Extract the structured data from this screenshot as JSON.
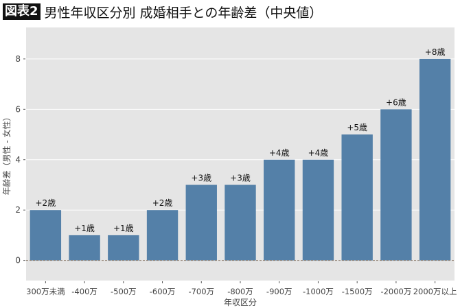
{
  "title": {
    "badge": "図表2",
    "text": "男性年収区分別 成婚相手との年齢差（中央値）"
  },
  "chart_data": {
    "type": "bar",
    "title": "男性年収区分別 成婚相手との年齢差（中央値）",
    "xlabel": "年収区分",
    "ylabel": "年齢差（男性 - 女性）",
    "categories": [
      "300万未満",
      "-400万",
      "-500万",
      "-600万",
      "-700万",
      "-800万",
      "-900万",
      "-1000万",
      "-1500万",
      "-2000万",
      "2000万以上"
    ],
    "values": [
      2,
      1,
      1,
      2,
      3,
      3,
      4,
      4,
      5,
      6,
      8
    ],
    "data_labels": [
      "+2歳",
      "+1歳",
      "+1歳",
      "+2歳",
      "+3歳",
      "+3歳",
      "+4歳",
      "+4歳",
      "+5歳",
      "+6歳",
      "+8歳"
    ],
    "ylim": [
      -0.8,
      9.25
    ],
    "yticks": [
      0,
      2,
      4,
      6,
      8
    ],
    "grid": true,
    "bar_color": "#5480a8",
    "background": "#e5e5e5",
    "zero_line": "dashed"
  }
}
